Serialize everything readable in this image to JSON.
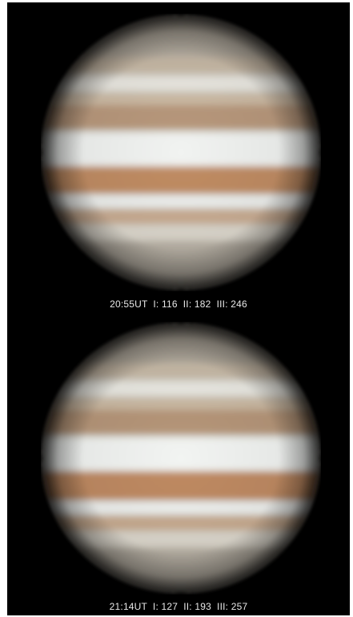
{
  "images": [
    {
      "caption": "20:55UT  I: 116  II: 182  III: 246",
      "subject": "Jupiter",
      "ut_time": "20:55UT",
      "cm_i": 116,
      "cm_ii": 182,
      "cm_iii": 246
    },
    {
      "caption": "21:14UT  I: 127  II: 193  III: 257",
      "subject": "Jupiter",
      "ut_time": "21:14UT",
      "cm_i": 127,
      "cm_ii": 193,
      "cm_iii": 257
    }
  ],
  "colors": {
    "background": "#000000",
    "caption_text": "#e8e8e8",
    "planet_base": "#d9d4c6",
    "belt_red": "#b98860",
    "zone_light": "#f2f4f2"
  }
}
